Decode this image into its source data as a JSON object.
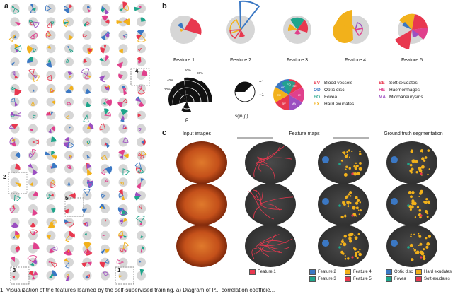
{
  "panels": {
    "a": "a",
    "b": "b",
    "c": "c"
  },
  "panel_a": {
    "rows": 21,
    "cols": 8,
    "callouts": [
      "1",
      "2",
      "3",
      "4",
      "5"
    ]
  },
  "panel_b": {
    "features": [
      "Feature 1",
      "Feature 2",
      "Feature 3",
      "Feature 4",
      "Feature 5"
    ],
    "rho_label": "ρ",
    "sgn_label": "sgn(ρ)",
    "sgn_plus": "+1",
    "sgn_minus": "−1",
    "polar_ticks": [
      "20%",
      "40%",
      "60%",
      "80%"
    ],
    "legend": [
      {
        "abbr": "BV",
        "name": "Blood vessels",
        "color": "#e8384f"
      },
      {
        "abbr": "OD",
        "name": "Optic disc",
        "color": "#3b78c4"
      },
      {
        "abbr": "FO",
        "name": "Fovea",
        "color": "#1fa58b"
      },
      {
        "abbr": "EX",
        "name": "Hard exudates",
        "color": "#f2b11b"
      },
      {
        "abbr": "SE",
        "name": "Soft exudates",
        "color": "#e8384f"
      },
      {
        "abbr": "HE",
        "name": "Haemorrhages",
        "color": "#e0408c"
      },
      {
        "abbr": "MA",
        "name": "Microaneurysms",
        "color": "#9b4fc1"
      }
    ]
  },
  "panel_c": {
    "col_input": "Input images",
    "col_feature_maps": "Feature maps",
    "col_ground_truth": "Ground truth segmentation",
    "legend_f1": "Feature 1",
    "legend_fmaps": [
      "Feature 2",
      "Feature 3",
      "Feature 4",
      "Feature 5"
    ],
    "legend_gt": [
      "Optic disc",
      "Fovea",
      "Hard exudates",
      "Soft exudates"
    ]
  },
  "caption": "1: Visualization of the features learned by the self-supervised training. a) Diagram of P... correlation coefficie..."
}
